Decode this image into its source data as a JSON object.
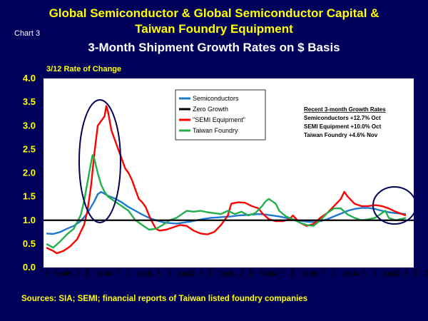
{
  "header": {
    "title_line1": "Global Semiconductor & Global Semiconductor Capital &",
    "title_line2": "Taiwan Foundry Equipment",
    "subtitle": "3-Month Shipment Growth Rates on $ Basis",
    "chart_number": "Chart 3",
    "ylabel": "3/12 Rate of Change"
  },
  "legend": {
    "items": [
      {
        "label": "Semiconductors",
        "color": "#1f77d0"
      },
      {
        "label": "Zero Growth",
        "color": "#000000"
      },
      {
        "label": "\"SEMI Equipment\"",
        "color": "#ff0000"
      },
      {
        "label": "Taiwan Foundry",
        "color": "#22b04b"
      }
    ]
  },
  "notes": {
    "heading": "Recent 3-month Growth Rates",
    "lines": [
      "Semiconductors +12.7% Oct",
      "SEMI Equipment +10.0% Oct",
      "Taiwan Foundry +4.6% Nov"
    ]
  },
  "source": "Sources: SIA; SEMI; financial reports of Taiwan listed foundry companies",
  "chart_data": {
    "type": "line",
    "ylim": [
      0.0,
      4.0
    ],
    "yticks": [
      "0.0",
      "0.5",
      "1.0",
      "1.5",
      "2.0",
      "2.5",
      "3.0",
      "3.5",
      "4.0"
    ],
    "month_ticks": [
      "Jan",
      "Apr",
      "Jul",
      "Oct"
    ],
    "years": [
      "2009",
      "2010",
      "2011",
      "2012",
      "2013",
      "2014",
      "2015",
      "2016",
      "2017",
      "2018"
    ],
    "reference_line": 1.0,
    "series": [
      {
        "name": "Semiconductors",
        "color": "#1f77d0",
        "points": [
          [
            0,
            0.72
          ],
          [
            2,
            0.71
          ],
          [
            4,
            0.75
          ],
          [
            6,
            0.82
          ],
          [
            8,
            0.88
          ],
          [
            10,
            0.98
          ],
          [
            12,
            1.15
          ],
          [
            14,
            1.4
          ],
          [
            15,
            1.55
          ],
          [
            16,
            1.6
          ],
          [
            18,
            1.52
          ],
          [
            20,
            1.46
          ],
          [
            22,
            1.38
          ],
          [
            24,
            1.28
          ],
          [
            26,
            1.2
          ],
          [
            28,
            1.12
          ],
          [
            30,
            1.05
          ],
          [
            32,
            1.0
          ],
          [
            34,
            0.96
          ],
          [
            36,
            0.94
          ],
          [
            38,
            0.93
          ],
          [
            40,
            0.95
          ],
          [
            42,
            0.97
          ],
          [
            44,
            1.0
          ],
          [
            46,
            1.03
          ],
          [
            48,
            1.05
          ],
          [
            50,
            1.06
          ],
          [
            52,
            1.07
          ],
          [
            54,
            1.08
          ],
          [
            56,
            1.1
          ],
          [
            58,
            1.11
          ],
          [
            60,
            1.12
          ],
          [
            62,
            1.13
          ],
          [
            64,
            1.12
          ],
          [
            66,
            1.1
          ],
          [
            68,
            1.08
          ],
          [
            70,
            1.05
          ],
          [
            72,
            1.02
          ],
          [
            74,
            0.99
          ],
          [
            76,
            0.97
          ],
          [
            78,
            0.96
          ],
          [
            80,
            0.98
          ],
          [
            82,
            1.02
          ],
          [
            84,
            1.08
          ],
          [
            86,
            1.14
          ],
          [
            88,
            1.2
          ],
          [
            90,
            1.24
          ],
          [
            92,
            1.26
          ],
          [
            94,
            1.26
          ],
          [
            96,
            1.24
          ],
          [
            98,
            1.2
          ],
          [
            100,
            1.17
          ],
          [
            102,
            1.15
          ],
          [
            105,
            1.13
          ]
        ]
      },
      {
        "name": "\"SEMI Equipment\"",
        "color": "#ff0000",
        "points": [
          [
            0,
            0.42
          ],
          [
            2,
            0.35
          ],
          [
            3,
            0.3
          ],
          [
            5,
            0.35
          ],
          [
            7,
            0.45
          ],
          [
            9,
            0.6
          ],
          [
            11,
            0.9
          ],
          [
            12,
            1.2
          ],
          [
            13,
            1.7
          ],
          [
            14,
            2.4
          ],
          [
            15,
            3.0
          ],
          [
            16,
            3.1
          ],
          [
            17,
            3.2
          ],
          [
            17.5,
            3.42
          ],
          [
            18,
            3.3
          ],
          [
            19,
            2.9
          ],
          [
            20,
            2.7
          ],
          [
            21,
            2.5
          ],
          [
            22,
            2.3
          ],
          [
            23,
            2.1
          ],
          [
            24,
            2.0
          ],
          [
            25,
            1.85
          ],
          [
            26,
            1.65
          ],
          [
            27,
            1.45
          ],
          [
            28,
            1.38
          ],
          [
            29,
            1.28
          ],
          [
            30,
            1.1
          ],
          [
            31,
            0.95
          ],
          [
            32,
            0.82
          ],
          [
            33,
            0.78
          ],
          [
            35,
            0.8
          ],
          [
            37,
            0.85
          ],
          [
            39,
            0.9
          ],
          [
            41,
            0.88
          ],
          [
            43,
            0.78
          ],
          [
            45,
            0.72
          ],
          [
            47,
            0.7
          ],
          [
            49,
            0.75
          ],
          [
            51,
            0.9
          ],
          [
            53,
            1.1
          ],
          [
            54,
            1.35
          ],
          [
            56,
            1.38
          ],
          [
            58,
            1.37
          ],
          [
            60,
            1.3
          ],
          [
            62,
            1.25
          ],
          [
            63,
            1.15
          ],
          [
            65,
            1.02
          ],
          [
            67,
            0.98
          ],
          [
            69,
            0.98
          ],
          [
            71,
            1.02
          ],
          [
            72,
            1.1
          ],
          [
            74,
            0.95
          ],
          [
            76,
            0.88
          ],
          [
            78,
            0.92
          ],
          [
            80,
            1.05
          ],
          [
            82,
            1.15
          ],
          [
            84,
            1.3
          ],
          [
            86,
            1.45
          ],
          [
            87,
            1.6
          ],
          [
            88,
            1.5
          ],
          [
            90,
            1.35
          ],
          [
            92,
            1.3
          ],
          [
            94,
            1.3
          ],
          [
            96,
            1.32
          ],
          [
            98,
            1.3
          ],
          [
            100,
            1.25
          ],
          [
            102,
            1.18
          ],
          [
            105,
            1.1
          ]
        ]
      },
      {
        "name": "Taiwan Foundry",
        "color": "#22b04b",
        "points": [
          [
            0,
            0.5
          ],
          [
            2,
            0.42
          ],
          [
            4,
            0.55
          ],
          [
            6,
            0.7
          ],
          [
            8,
            0.82
          ],
          [
            10,
            1.1
          ],
          [
            11,
            1.4
          ],
          [
            12,
            1.8
          ],
          [
            13,
            2.2
          ],
          [
            13.5,
            2.38
          ],
          [
            14,
            2.3
          ],
          [
            15,
            2.0
          ],
          [
            16,
            1.75
          ],
          [
            17,
            1.6
          ],
          [
            18,
            1.5
          ],
          [
            20,
            1.4
          ],
          [
            22,
            1.3
          ],
          [
            24,
            1.2
          ],
          [
            26,
            1.0
          ],
          [
            28,
            0.9
          ],
          [
            30,
            0.8
          ],
          [
            32,
            0.82
          ],
          [
            34,
            0.9
          ],
          [
            36,
            1.0
          ],
          [
            38,
            1.05
          ],
          [
            40,
            1.15
          ],
          [
            41,
            1.2
          ],
          [
            43,
            1.18
          ],
          [
            45,
            1.2
          ],
          [
            47,
            1.17
          ],
          [
            49,
            1.15
          ],
          [
            51,
            1.13
          ],
          [
            53,
            1.2
          ],
          [
            55,
            1.13
          ],
          [
            57,
            1.18
          ],
          [
            59,
            1.1
          ],
          [
            61,
            1.15
          ],
          [
            63,
            1.3
          ],
          [
            64,
            1.4
          ],
          [
            65,
            1.45
          ],
          [
            66,
            1.4
          ],
          [
            67,
            1.35
          ],
          [
            68,
            1.2
          ],
          [
            70,
            1.08
          ],
          [
            72,
            1.02
          ],
          [
            74,
            0.95
          ],
          [
            76,
            0.9
          ],
          [
            78,
            0.88
          ],
          [
            80,
            1.0
          ],
          [
            82,
            1.15
          ],
          [
            84,
            1.25
          ],
          [
            86,
            1.25
          ],
          [
            88,
            1.12
          ],
          [
            90,
            1.05
          ],
          [
            92,
            1.0
          ],
          [
            94,
            1.02
          ],
          [
            96,
            1.05
          ],
          [
            98,
            1.15
          ],
          [
            99,
            1.2
          ],
          [
            100,
            1.05
          ],
          [
            102,
            1.0
          ],
          [
            105,
            1.05
          ]
        ]
      }
    ]
  }
}
